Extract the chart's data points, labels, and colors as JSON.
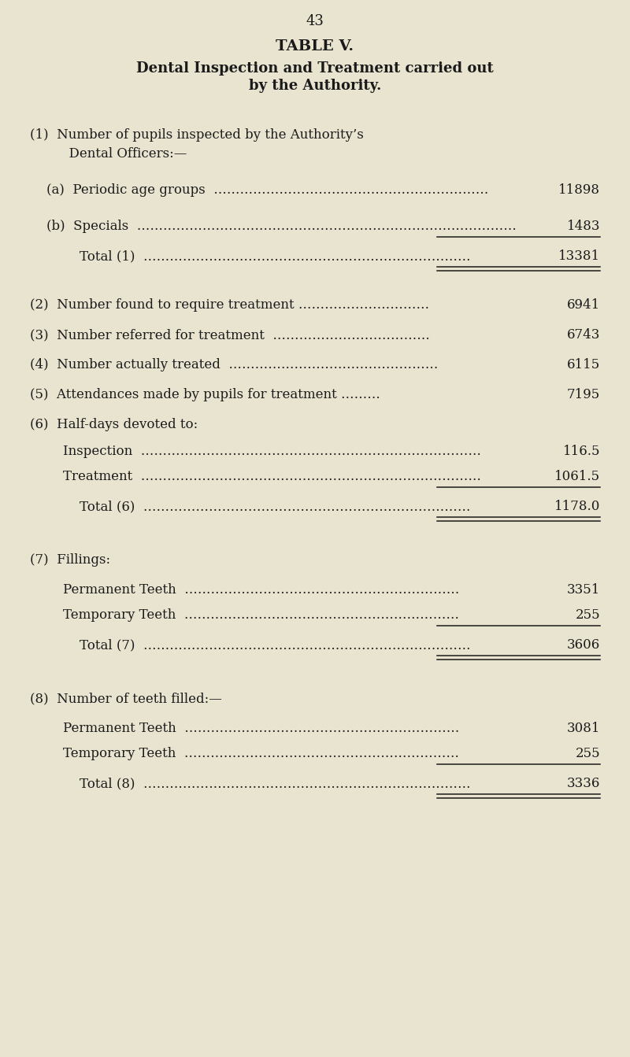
{
  "page_number": "43",
  "title": "TABLE V.",
  "subtitle_line1": "Dental Inspection and Treatment carried out",
  "subtitle_line2": "by the Authority.",
  "bg_color": "#e8e4d0",
  "text_color": "#1a1a1a",
  "figwidth": 8.0,
  "figheight": 13.43,
  "dpi": 100,
  "rows": [
    {
      "type": "header2",
      "line1": "(1)  Number of pupils inspected by the Authority’s",
      "line2": "      Dental Officers:—",
      "value": "",
      "underline_after": false,
      "double_underline": false,
      "space_before": 28
    },
    {
      "type": "item",
      "label": "    (a)  Periodic age groups  ………………………………………………………",
      "value": "11898",
      "underline_after": false,
      "double_underline": false,
      "space_before": 18
    },
    {
      "type": "item",
      "label": "    (b)  Specials  ……………………………………………………………………………",
      "value": "1483",
      "underline_after": true,
      "double_underline": false,
      "space_before": 18
    },
    {
      "type": "item",
      "label": "            Total (1)  …………………………………………………………………",
      "value": "13381",
      "underline_after": true,
      "double_underline": true,
      "space_before": 6
    },
    {
      "type": "item",
      "label": "(2)  Number found to require treatment …………………………",
      "value": "6941",
      "underline_after": false,
      "double_underline": false,
      "space_before": 22
    },
    {
      "type": "item",
      "label": "(3)  Number referred for treatment  ………………………………",
      "value": "6743",
      "underline_after": false,
      "double_underline": false,
      "space_before": 10
    },
    {
      "type": "item",
      "label": "(4)  Number actually treated  …………………………………………",
      "value": "6115",
      "underline_after": false,
      "double_underline": false,
      "space_before": 10
    },
    {
      "type": "item",
      "label": "(5)  Attendances made by pupils for treatment ………",
      "value": "7195",
      "underline_after": false,
      "double_underline": false,
      "space_before": 10
    },
    {
      "type": "item",
      "label": "(6)  Half-days devoted to:",
      "value": "",
      "underline_after": false,
      "double_underline": false,
      "space_before": 10
    },
    {
      "type": "item",
      "label": "        Inspection  ……………………………………………………………………",
      "value": "116.5",
      "underline_after": false,
      "double_underline": false,
      "space_before": 6
    },
    {
      "type": "item",
      "label": "        Treatment  ……………………………………………………………………",
      "value": "1061.5",
      "underline_after": true,
      "double_underline": false,
      "space_before": 4
    },
    {
      "type": "item",
      "label": "            Total (6)  …………………………………………………………………",
      "value": "1178.0",
      "underline_after": true,
      "double_underline": true,
      "space_before": 6
    },
    {
      "type": "item",
      "label": "(7)  Fillings:",
      "value": "",
      "underline_after": false,
      "double_underline": false,
      "space_before": 28
    },
    {
      "type": "item",
      "label": "        Permanent Teeth  ………………………………………………………",
      "value": "3351",
      "underline_after": false,
      "double_underline": false,
      "space_before": 10
    },
    {
      "type": "item",
      "label": "        Temporary Teeth  ………………………………………………………",
      "value": "255",
      "underline_after": true,
      "double_underline": false,
      "space_before": 4
    },
    {
      "type": "item",
      "label": "            Total (7)  …………………………………………………………………",
      "value": "3606",
      "underline_after": true,
      "double_underline": true,
      "space_before": 6
    },
    {
      "type": "item",
      "label": "(8)  Number of teeth filled:—",
      "value": "",
      "underline_after": false,
      "double_underline": false,
      "space_before": 28
    },
    {
      "type": "item",
      "label": "        Permanent Teeth  ………………………………………………………",
      "value": "3081",
      "underline_after": false,
      "double_underline": false,
      "space_before": 10
    },
    {
      "type": "item",
      "label": "        Temporary Teeth  ………………………………………………………",
      "value": "255",
      "underline_after": true,
      "double_underline": false,
      "space_before": 4
    },
    {
      "type": "item",
      "label": "            Total (8)  …………………………………………………………………",
      "value": "3336",
      "underline_after": true,
      "double_underline": true,
      "space_before": 6
    }
  ]
}
